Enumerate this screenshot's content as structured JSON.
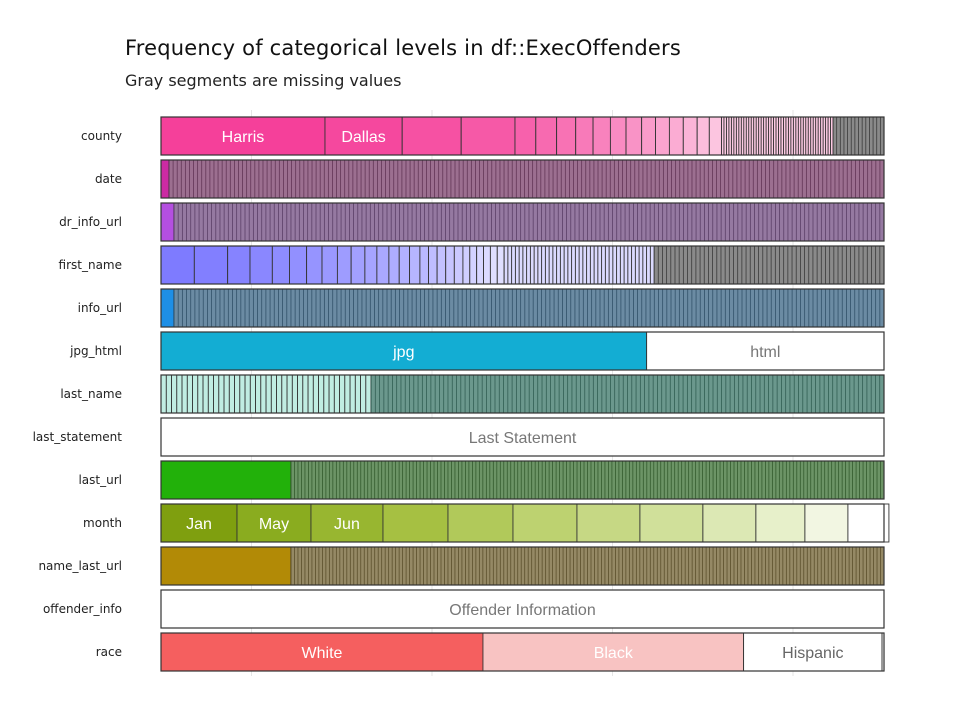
{
  "title": "Frequency of categorical levels in df::ExecOffenders",
  "subtitle": "Gray segments are missing values",
  "chart_data": {
    "type": "bar",
    "orientation": "horizontal",
    "stacked": "proportional",
    "grid": true,
    "xlabel": "",
    "ylabel": "",
    "categories": [
      "county",
      "date",
      "dr_info_url",
      "first_name",
      "info_url",
      "jpg_html",
      "last_name",
      "last_statement",
      "last_url",
      "month",
      "name_last_url",
      "offender_info",
      "race"
    ],
    "rows": [
      {
        "name": "county",
        "color": "#F5409A",
        "leading_fractions": [
          0.2268,
          0.1068,
          0.0816,
          0.0744,
          0.0288,
          0.0288,
          0.0264,
          0.024,
          0.024,
          0.0216,
          0.0216,
          0.0192,
          0.0192,
          0.0192,
          0.0192,
          0.0168,
          0.0168
        ],
        "labels": [
          "Harris",
          "Dallas"
        ],
        "tail_segments": 45,
        "tail_end": 0.9295,
        "missing_fraction": 0.0705,
        "missing_lines": 14
      },
      {
        "name": "date",
        "color": "#CC2AA3",
        "leading_fractions": [
          0.0111
        ],
        "labels": [],
        "tail_segments": 175,
        "tail_end": 0.0111,
        "missing_fraction": 0.9889,
        "missing_lines": 175
      },
      {
        "name": "dr_info_url",
        "color": "#B44FE0",
        "leading_fractions": [
          0.018
        ],
        "labels": [],
        "tail_segments": 170,
        "tail_end": 0.018,
        "missing_fraction": 0.982,
        "missing_lines": 170
      },
      {
        "name": "first_name",
        "color": "#7E7BFF",
        "leading_fractions": [
          0.0461,
          0.0461,
          0.0309,
          0.0309,
          0.0237,
          0.0237,
          0.0213,
          0.0213,
          0.019,
          0.019,
          0.0166,
          0.0166,
          0.0143,
          0.0143,
          0.0143,
          0.0119,
          0.0119,
          0.0119,
          0.0119,
          0.0119,
          0.0095,
          0.0095,
          0.0095,
          0.0095,
          0.0095,
          0.0095
        ],
        "labels": [],
        "tail_segments": 40,
        "tail_end": 0.682,
        "missing_fraction": 0.318,
        "missing_lines": 55
      },
      {
        "name": "info_url",
        "color": "#1E8FE6",
        "leading_fractions": [
          0.018
        ],
        "labels": [],
        "tail_segments": 170,
        "tail_end": 0.018,
        "missing_fraction": 0.982,
        "missing_lines": 170
      },
      {
        "name": "jpg_html",
        "color": "#13ADD3",
        "leading_fractions": [
          0.6717,
          0.3283
        ],
        "labels": [
          "jpg",
          "html"
        ],
        "label_colors": [
          "#ffffff",
          "#777777"
        ],
        "fill_override": [
          null,
          "#ffffff"
        ],
        "tail_segments": 0,
        "tail_end": 1.0,
        "missing_fraction": 0.0,
        "missing_lines": 0
      },
      {
        "name": "last_name",
        "color": "#1DBE98",
        "leading_fractions": [],
        "labels": [],
        "tail_segments": 40,
        "tail_end": 0.2905,
        "missing_fraction": 0.7095,
        "missing_lines": 120
      },
      {
        "name": "last_statement",
        "color": "#ffffff",
        "leading_fractions": [
          1.0
        ],
        "labels": [
          "Last Statement"
        ],
        "label_colors": [
          "#777777"
        ],
        "tail_segments": 0,
        "tail_end": 1.0,
        "missing_fraction": 0.0,
        "missing_lines": 0
      },
      {
        "name": "last_url",
        "color": "#22B10A",
        "leading_fractions": [
          0.1798
        ],
        "labels": [],
        "tail_segments": 170,
        "tail_end": 0.1798,
        "missing_fraction": 0.8202,
        "missing_lines": 170
      },
      {
        "name": "month",
        "color": "#7AA313",
        "leading_fractions": [
          0.1051,
          0.1023,
          0.0996,
          0.0899,
          0.0899,
          0.0885,
          0.0871,
          0.0871,
          0.0733,
          0.0678,
          0.0595,
          0.0567
        ],
        "labels": [
          "Jan",
          "May",
          "Jun"
        ],
        "segment_colors": [
          "#7F9F0F",
          "#8AAC1F",
          "#98B630",
          "#A6C042",
          "#B1C95A",
          "#BDD270",
          "#C6D884",
          "#D0E09A",
          "#DCE8B4",
          "#E7F0CA",
          "#F2F6E2",
          "#FFFFFF"
        ],
        "tail_segments": 0,
        "tail_end": 1.0,
        "missing_fraction": 0.0,
        "missing_lines": 0
      },
      {
        "name": "name_last_url",
        "color": "#B28A06",
        "leading_fractions": [
          0.1798
        ],
        "labels": [],
        "tail_segments": 170,
        "tail_end": 0.1798,
        "missing_fraction": 0.8202,
        "missing_lines": 170
      },
      {
        "name": "offender_info",
        "color": "#ffffff",
        "leading_fractions": [
          1.0
        ],
        "labels": [
          "Offender Information"
        ],
        "label_colors": [
          "#777777"
        ],
        "tail_segments": 0,
        "tail_end": 1.0,
        "missing_fraction": 0.0,
        "missing_lines": 0
      },
      {
        "name": "race",
        "color": "#F55F5F",
        "leading_fractions": [
          0.4453,
          0.3605,
          0.1915,
          0.0028
        ],
        "labels": [
          "White",
          "Black",
          "Hispanic"
        ],
        "label_colors": [
          "#ffffff",
          "#ffffff",
          "#666666"
        ],
        "segment_colors": [
          "#F55F5F",
          "#F8C3C2",
          "#FFFFFF",
          "#FFFFFF"
        ],
        "tail_segments": 0,
        "tail_end": 1.0,
        "missing_fraction": 0.0,
        "missing_lines": 0
      }
    ]
  }
}
